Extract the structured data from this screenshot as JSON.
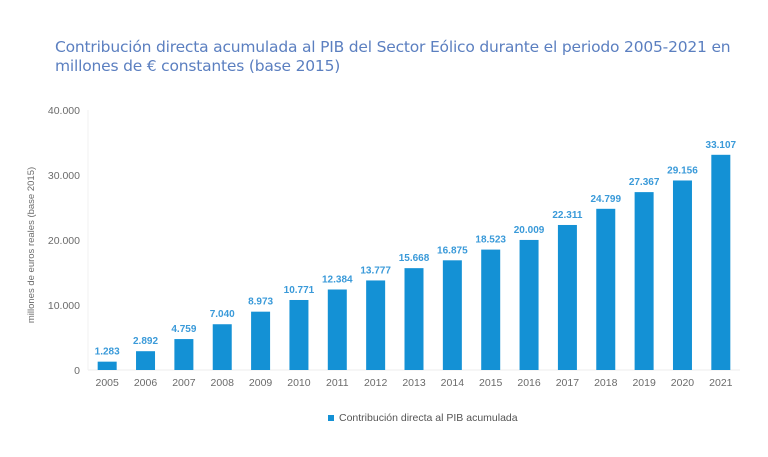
{
  "chart_data": {
    "type": "bar",
    "title": "Contribución directa acumulada al PIB del Sector Eólico durante el periodo 2005-2021 en millones de € constantes (base 2015)",
    "xlabel": "",
    "ylabel": "millones de euros reales (base 2015)",
    "ylim": [
      0,
      40000
    ],
    "yticks": [
      0,
      10000,
      20000,
      30000,
      40000
    ],
    "ytick_labels": [
      "0",
      "10.000",
      "20.000",
      "30.000",
      "40.000"
    ],
    "categories": [
      "2005",
      "2006",
      "2007",
      "2008",
      "2009",
      "2010",
      "2011",
      "2012",
      "2013",
      "2014",
      "2015",
      "2016",
      "2017",
      "2018",
      "2019",
      "2020",
      "2021"
    ],
    "series": [
      {
        "name": "Contribución directa al PIB acumulada",
        "color": "#1491d5",
        "values": [
          1283,
          2892,
          4759,
          7040,
          8973,
          10771,
          12384,
          13777,
          15668,
          16875,
          18523,
          20009,
          22311,
          24799,
          27367,
          29156,
          33107
        ],
        "labels": [
          "1.283",
          "2.892",
          "4.759",
          "7.040",
          "8.973",
          "10.771",
          "12.384",
          "13.777",
          "15.668",
          "16.875",
          "18.523",
          "20.009",
          "22.311",
          "24.799",
          "27.367",
          "29.156",
          "33.107"
        ]
      }
    ],
    "legend": {
      "position": "bottom-center",
      "label": "Contribución directa al PIB acumulada"
    },
    "grid": false
  }
}
